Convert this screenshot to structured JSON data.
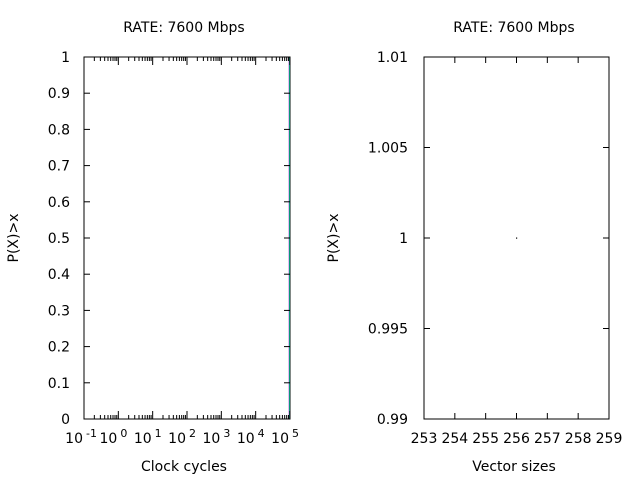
{
  "chart_data": [
    {
      "type": "line",
      "title": "RATE: 7600 Mbps",
      "xlabel": "Clock cycles",
      "ylabel": "P(X)>x",
      "x_scale": "log",
      "xlim": [
        0.1,
        100000
      ],
      "ylim": [
        0,
        1
      ],
      "grid": false,
      "x_ticks": [
        {
          "base": "10",
          "exp": "-1"
        },
        {
          "base": "10",
          "exp": "0"
        },
        {
          "base": "10",
          "exp": "1"
        },
        {
          "base": "10",
          "exp": "2"
        },
        {
          "base": "10",
          "exp": "3"
        },
        {
          "base": "10",
          "exp": "4"
        },
        {
          "base": "10",
          "exp": "5"
        }
      ],
      "y_ticks": [
        "0",
        "0.1",
        "0.2",
        "0.3",
        "0.4",
        "0.5",
        "0.6",
        "0.7",
        "0.8",
        "0.9",
        "1"
      ],
      "series": [
        {
          "color": "#9400d3",
          "x": [
            95000,
            95000
          ],
          "y": [
            0,
            1
          ]
        },
        {
          "color": "#009e73",
          "x": [
            97000,
            97000
          ],
          "y": [
            0,
            1
          ]
        }
      ]
    },
    {
      "type": "scatter",
      "title": "RATE: 7600 Mbps",
      "xlabel": "Vector sizes",
      "ylabel": "P(X)>x",
      "xlim": [
        253,
        259
      ],
      "ylim": [
        0.99,
        1.01
      ],
      "grid": false,
      "x_ticks": [
        "253",
        "254",
        "255",
        "256",
        "257",
        "258",
        "259"
      ],
      "y_ticks": [
        "0.99",
        "0.995",
        "1",
        "1.005",
        "1.01"
      ],
      "series": [
        {
          "color": "#000000",
          "x": [
            256
          ],
          "y": [
            1
          ]
        }
      ]
    }
  ]
}
